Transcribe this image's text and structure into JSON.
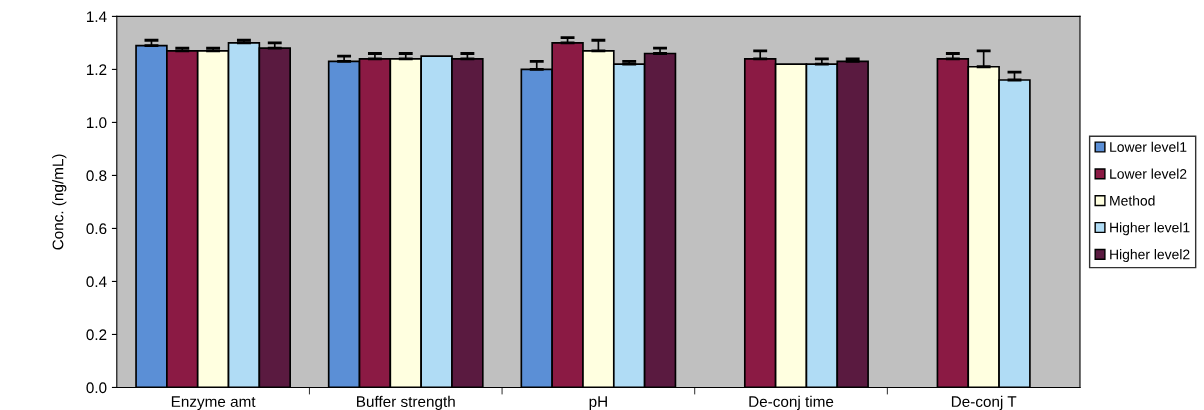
{
  "chart_data": {
    "type": "bar",
    "ylabel": "Conc. (ng/mL)",
    "categories": [
      "Enzyme amt",
      "Buffer strength",
      "pH",
      "De-conj time",
      "De-conj T"
    ],
    "series": [
      {
        "name": "Lower level1",
        "color": "#5b8fd6",
        "values": [
          1.29,
          1.23,
          1.2,
          null,
          null
        ],
        "errors": [
          [
            1.29,
            1.31
          ],
          [
            1.23,
            1.25
          ],
          [
            1.2,
            1.23
          ],
          null,
          null
        ]
      },
      {
        "name": "Lower level2",
        "color": "#8b1a44",
        "values": [
          1.27,
          1.24,
          1.3,
          1.24,
          1.24
        ],
        "errors": [
          [
            1.27,
            1.28
          ],
          [
            1.24,
            1.26
          ],
          [
            1.3,
            1.32
          ],
          [
            1.24,
            1.27
          ],
          [
            1.24,
            1.26
          ]
        ]
      },
      {
        "name": "Method",
        "color": "#ffffe0",
        "values": [
          1.27,
          1.24,
          1.27,
          1.22,
          1.21
        ],
        "errors": [
          [
            1.27,
            1.28
          ],
          [
            1.24,
            1.26
          ],
          [
            1.27,
            1.31
          ],
          null,
          [
            1.21,
            1.27
          ]
        ]
      },
      {
        "name": "Higher level1",
        "color": "#b0dcf5",
        "values": [
          1.3,
          1.25,
          1.22,
          1.22,
          1.16
        ],
        "errors": [
          [
            1.3,
            1.31
          ],
          null,
          [
            1.22,
            1.23
          ],
          [
            1.22,
            1.24
          ],
          [
            1.16,
            1.19
          ]
        ]
      },
      {
        "name": "Higher level2",
        "color": "#5a1a40",
        "values": [
          1.28,
          1.24,
          1.26,
          1.23,
          null
        ],
        "errors": [
          [
            1.28,
            1.3
          ],
          [
            1.24,
            1.26
          ],
          [
            1.26,
            1.28
          ],
          [
            1.23,
            1.24
          ],
          null
        ]
      }
    ],
    "ylim": [
      0,
      1.4
    ],
    "yticks": [
      {
        "value": 0,
        "label": "0.0"
      },
      {
        "value": 0.2,
        "label": "0.2"
      },
      {
        "value": 0.4,
        "label": "0.4"
      },
      {
        "value": 0.6,
        "label": "0.6"
      },
      {
        "value": 0.8,
        "label": "0.8"
      },
      {
        "value": 1.0,
        "label": "1.0"
      },
      {
        "value": 1.2,
        "label": "1.2"
      },
      {
        "value": 1.4,
        "label": "1.4"
      }
    ],
    "grid": false,
    "legend": "right"
  }
}
